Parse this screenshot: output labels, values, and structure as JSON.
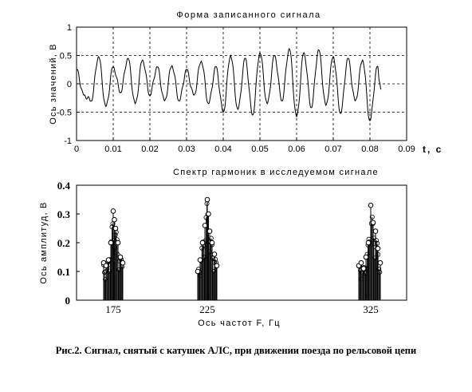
{
  "chart_data": [
    {
      "type": "line",
      "title": "Форма записанного сигнала",
      "ylabel": "Ось значений, В",
      "xlabel": "t, с",
      "xlim": [
        0,
        0.09
      ],
      "ylim": [
        -1,
        1
      ],
      "xticks": [
        "0",
        "0.01",
        "0.02",
        "0.03",
        "0.04",
        "0.05",
        "0.06",
        "0.07",
        "0.08",
        "0.09"
      ],
      "yticks": [
        "-1",
        "-0.5",
        "0",
        "0.5",
        "1"
      ],
      "grid": true,
      "series": [
        {
          "x": [
            0,
            0.002,
            0.004,
            0.006,
            0.008,
            0.01,
            0.012,
            0.014,
            0.016,
            0.018,
            0.02,
            0.022,
            0.024,
            0.026,
            0.028,
            0.03,
            0.032,
            0.034,
            0.036,
            0.038,
            0.04,
            0.042,
            0.044,
            0.046,
            0.048,
            0.05,
            0.052,
            0.054,
            0.056,
            0.058,
            0.06,
            0.062,
            0.064,
            0.066,
            0.068,
            0.07,
            0.072,
            0.074,
            0.076,
            0.078,
            0.08,
            0.082,
            0.083
          ],
          "y": [
            0.25,
            -0.2,
            -0.3,
            0.48,
            -0.4,
            0.3,
            -0.15,
            0.45,
            -0.35,
            0.42,
            -0.2,
            0.3,
            -0.3,
            0.32,
            -0.3,
            0.25,
            -0.2,
            0.4,
            -0.35,
            0.3,
            -0.5,
            0.5,
            -0.45,
            0.45,
            -0.55,
            0.55,
            -0.35,
            0.5,
            -0.3,
            0.62,
            -0.58,
            0.55,
            -0.42,
            0.6,
            -0.38,
            0.48,
            -0.52,
            0.45,
            -0.3,
            0.42,
            -0.65,
            0.3,
            -0.1
          ]
        }
      ]
    },
    {
      "type": "stem",
      "title": "Спектр гармоник в исследуемом сигнале",
      "ylabel": "Ось амплитуд, В",
      "xlabel": "Ось частот F, Гц",
      "ylim": [
        0,
        0.4
      ],
      "xticks": [
        "175",
        "225",
        "325"
      ],
      "yticks": [
        "0",
        "0.1",
        "0.2",
        "0.3",
        "0.4"
      ],
      "groups": [
        {
          "center": 175,
          "x": [
            171,
            172,
            173,
            174,
            175,
            175.5,
            176,
            177,
            178,
            179
          ],
          "y": [
            0.13,
            0.12,
            0.14,
            0.2,
            0.31,
            0.28,
            0.25,
            0.2,
            0.15,
            0.13
          ]
        },
        {
          "center": 225,
          "x": [
            221,
            222,
            223,
            224,
            225,
            225.5,
            226,
            227,
            228,
            229
          ],
          "y": [
            0.1,
            0.14,
            0.2,
            0.26,
            0.35,
            0.3,
            0.24,
            0.2,
            0.16,
            0.12
          ]
        },
        {
          "center": 325,
          "x": [
            320,
            321,
            322,
            323,
            324,
            325,
            326,
            327,
            328,
            329
          ],
          "y": [
            0.12,
            0.13,
            0.11,
            0.15,
            0.2,
            0.33,
            0.27,
            0.24,
            0.18,
            0.13
          ]
        }
      ]
    }
  ],
  "caption": "Рис.2. Сигнал, снятый с катушек АЛС, при движении поезда по рельсовой цепи"
}
